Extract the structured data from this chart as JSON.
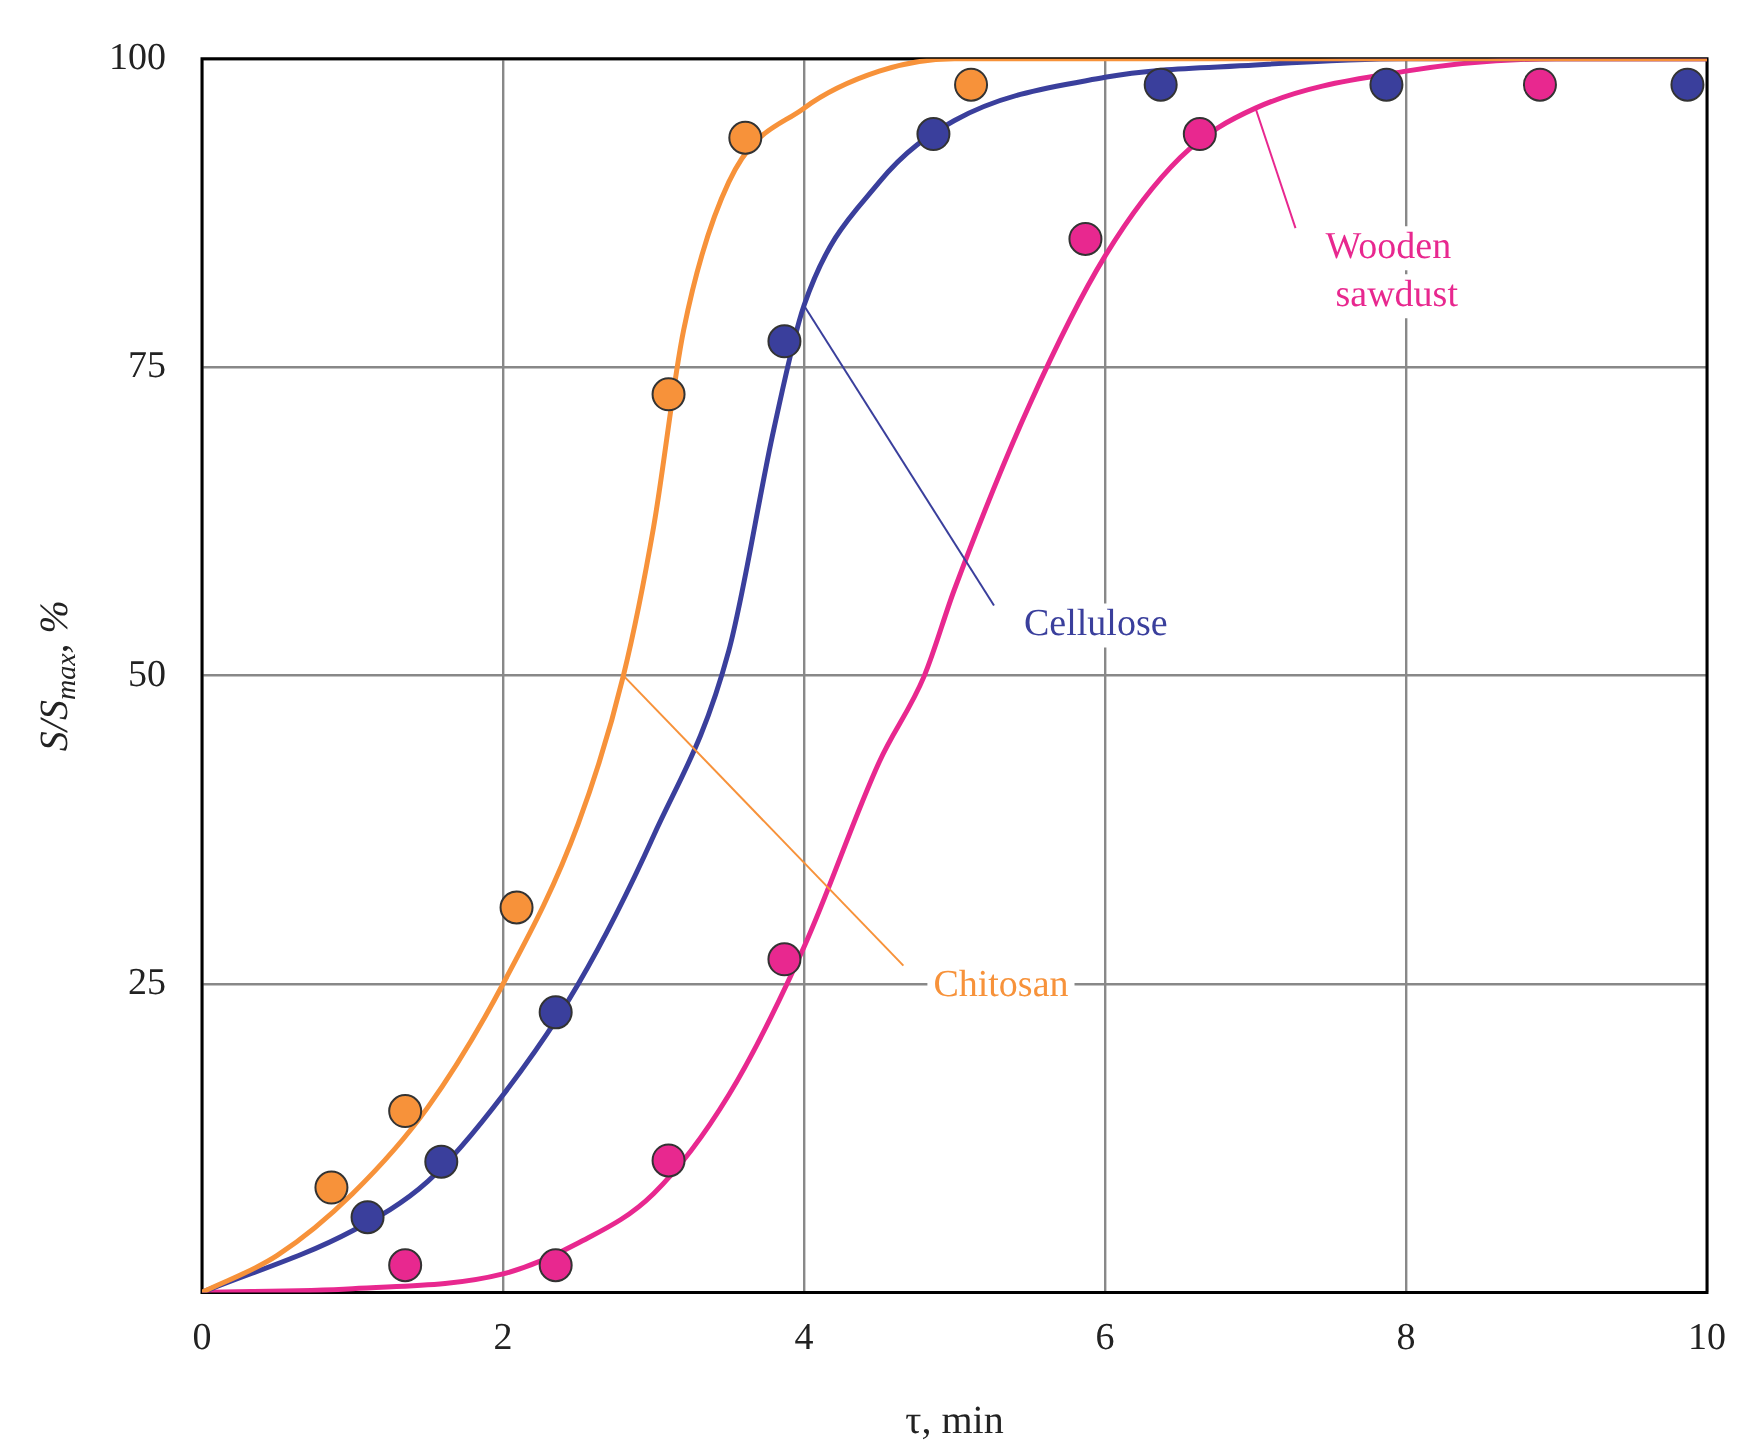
{
  "chart_data": {
    "type": "scatter",
    "xlabel": "τ, min",
    "ylabel": "S/S$_{max}$, %",
    "xlim": [
      0,
      10
    ],
    "xticks": [
      0,
      2,
      4,
      6,
      8,
      10
    ],
    "ylim": [
      0,
      100
    ],
    "yticks": [
      25,
      50,
      75,
      100
    ],
    "grid": true,
    "legend": false,
    "marker": "circle",
    "series": [
      {
        "type": "line",
        "name": "Chitosan",
        "color": "#f7923a",
        "marker": "none",
        "x": [
          0,
          0.5,
          1,
          1.5,
          2,
          2.5,
          2.8,
          3,
          3.2,
          3.5,
          4,
          4.5,
          5,
          6,
          10
        ],
        "values": [
          0,
          3,
          8,
          15,
          25,
          38,
          50,
          62,
          78,
          90,
          96,
          99,
          100,
          100,
          100
        ]
      },
      {
        "type": "line",
        "name": "Cellulose",
        "color": "#3a3f9c",
        "marker": "none",
        "x": [
          0,
          1,
          1.5,
          2,
          2.5,
          3,
          3.5,
          3.8,
          4,
          4.5,
          5,
          6,
          7,
          8,
          10
        ],
        "values": [
          0,
          5,
          9,
          16,
          25,
          37,
          52,
          70,
          80,
          90,
          95,
          98.5,
          99.5,
          100,
          100
        ]
      },
      {
        "type": "line",
        "name": "Wooden sawdust",
        "color": "#e8288f",
        "marker": "none",
        "x": [
          0,
          1,
          2,
          2.5,
          3,
          3.5,
          4,
          4.5,
          4.8,
          5,
          5.5,
          6,
          6.5,
          7,
          8,
          9,
          10
        ],
        "values": [
          0,
          0.3,
          1.5,
          4,
          8,
          16,
          28,
          43,
          50,
          57,
          72,
          84,
          92,
          96,
          99,
          100,
          100
        ]
      },
      {
        "color": "#f7923a",
        "x": [
          0.86,
          1.35,
          2.09,
          3.1,
          3.61,
          5.11
        ],
        "values": [
          8.5,
          14.7,
          31.2,
          72.8,
          93.6,
          97.9
        ]
      },
      {
        "color": "#3a3f9c",
        "x": [
          1.1,
          1.59,
          2.35,
          3.87,
          4.86,
          6.37,
          7.87,
          9.87
        ],
        "values": [
          6.1,
          10.6,
          22.7,
          77.1,
          93.9,
          97.9,
          97.9,
          97.9
        ]
      },
      {
        "color": "#e8288f",
        "x": [
          1.35,
          2.35,
          3.1,
          3.87,
          5.87,
          6.63,
          8.89
        ],
        "values": [
          2.2,
          2.2,
          10.7,
          27,
          85.4,
          93.9,
          97.9
        ]
      }
    ]
  }
}
